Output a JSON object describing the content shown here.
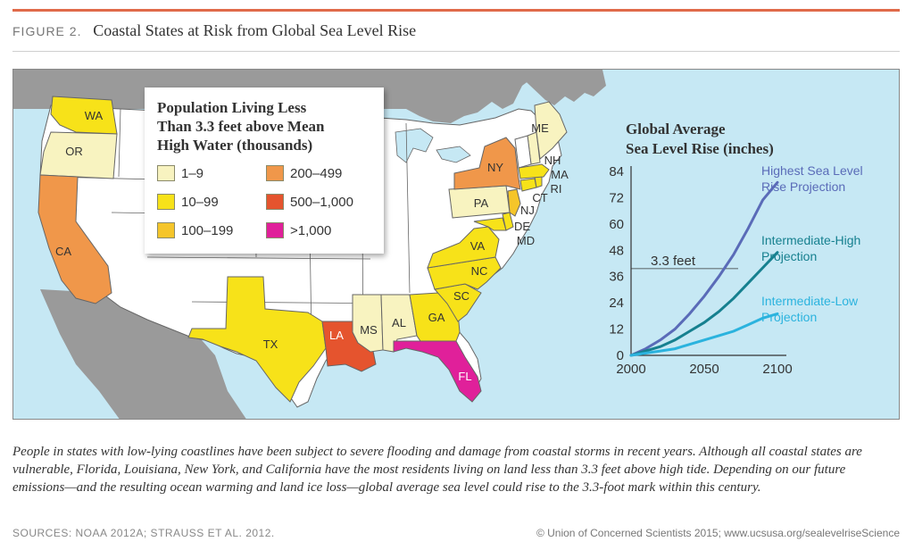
{
  "header": {
    "figure_label": "FIGURE 2.",
    "title": "Coastal States at Risk from Global Sea Level Rise"
  },
  "colors": {
    "accent_rule": "#e06a4a",
    "ocean": "#c6e8f4",
    "land_other": "#9a9a9a",
    "state_fill": "#ffffff",
    "state_border": "#666666"
  },
  "legend": {
    "title_lines": [
      "Population Living Less",
      "Than 3.3 feet above Mean",
      "High Water (thousands)"
    ],
    "items": [
      {
        "label": "1–9",
        "color": "#f8f3c0"
      },
      {
        "label": "200–499",
        "color": "#f0974a"
      },
      {
        "label": "10–99",
        "color": "#f7e219"
      },
      {
        "label": "500–1,000",
        "color": "#e5542e"
      },
      {
        "label": "100–199",
        "color": "#f5c52a"
      },
      {
        "label": ">1,000",
        "color": "#e0209a"
      }
    ]
  },
  "map": {
    "states": [
      {
        "abbr": "WA",
        "category": "10–99"
      },
      {
        "abbr": "OR",
        "category": "1–9"
      },
      {
        "abbr": "CA",
        "category": "200–499"
      },
      {
        "abbr": "TX",
        "category": "10–99"
      },
      {
        "abbr": "LA",
        "category": "500–1,000"
      },
      {
        "abbr": "MS",
        "category": "1–9"
      },
      {
        "abbr": "AL",
        "category": "1–9"
      },
      {
        "abbr": "GA",
        "category": "10–99"
      },
      {
        "abbr": "FL",
        "category": ">1,000"
      },
      {
        "abbr": "SC",
        "category": "10–99"
      },
      {
        "abbr": "NC",
        "category": "10–99"
      },
      {
        "abbr": "VA",
        "category": "10–99"
      },
      {
        "abbr": "MD",
        "category": "10–99"
      },
      {
        "abbr": "DE",
        "category": "10–99"
      },
      {
        "abbr": "NJ",
        "category": "100–199"
      },
      {
        "abbr": "PA",
        "category": "1–9"
      },
      {
        "abbr": "NY",
        "category": "200–499"
      },
      {
        "abbr": "CT",
        "category": "10–99"
      },
      {
        "abbr": "RI",
        "category": "10–99"
      },
      {
        "abbr": "MA",
        "category": "10–99"
      },
      {
        "abbr": "NH",
        "category": "1–9"
      },
      {
        "abbr": "ME",
        "category": "1–9"
      }
    ]
  },
  "chart_data": {
    "type": "line",
    "title": "Global Average Sea Level Rise (inches)",
    "title_lines": [
      "Global Average",
      "Sea Level Rise (inches)"
    ],
    "x_ticks": [
      2000,
      2050,
      2100
    ],
    "y_ticks": [
      0,
      12,
      24,
      36,
      48,
      60,
      72,
      84
    ],
    "xlim": [
      2000,
      2100
    ],
    "ylim": [
      0,
      84
    ],
    "threshold": {
      "label": "3.3 feet",
      "value": 39.6
    },
    "series": [
      {
        "name": "Highest Sea Level Rise Projection",
        "label_lines": [
          "Highest Sea Level",
          "Rise Projection"
        ],
        "color": "#5a6bb8",
        "x": [
          2000,
          2010,
          2020,
          2030,
          2040,
          2050,
          2060,
          2070,
          2080,
          2090,
          2100
        ],
        "y": [
          0,
          3,
          7,
          12,
          19,
          27,
          36,
          46,
          58,
          71,
          79
        ]
      },
      {
        "name": "Intermediate-High Projection",
        "label_lines": [
          "Intermediate-High",
          "Projection"
        ],
        "color": "#16808f",
        "x": [
          2000,
          2010,
          2020,
          2030,
          2040,
          2050,
          2060,
          2070,
          2080,
          2090,
          2100
        ],
        "y": [
          0,
          2,
          4,
          7,
          11,
          15,
          20,
          26,
          33,
          40,
          47
        ]
      },
      {
        "name": "Intermediate-Low Projection",
        "label_lines": [
          "Intermediate-Low",
          "Projection"
        ],
        "color": "#2bb3de",
        "x": [
          2000,
          2010,
          2020,
          2030,
          2040,
          2050,
          2060,
          2070,
          2080,
          2090,
          2100
        ],
        "y": [
          0,
          1,
          2,
          3,
          5,
          7,
          9,
          11,
          14,
          17,
          19
        ]
      }
    ]
  },
  "caption": "People in states with low-lying coastlines have been subject to severe flooding and damage from coastal storms in recent years. Although all coastal states are vulnerable, Florida, Louisiana, New York, and California have the most residents living on land less than 3.3 feet above high tide. Depending on our future emissions—and the resulting ocean warming and land ice loss—global average sea level could rise to the 3.3-foot mark within this century.",
  "footer": {
    "sources": "SOURCES: NOAA 2012A; STRAUSS ET AL. 2012.",
    "credit": "© Union of Concerned Scientists 2015; www.ucsusa.org/sealevelriseScience"
  }
}
